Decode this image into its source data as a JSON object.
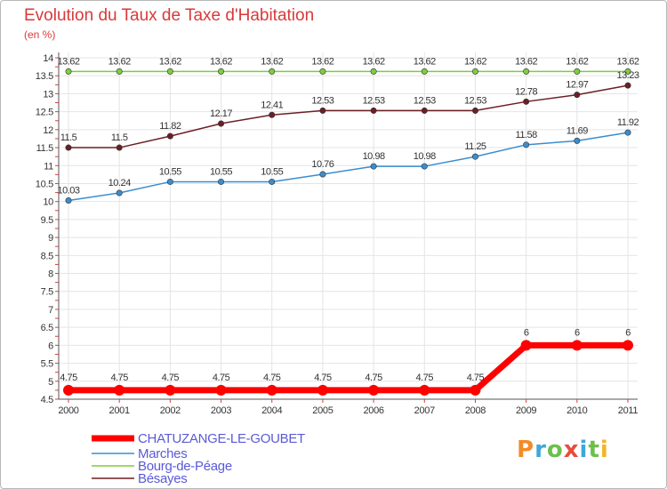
{
  "chart_data": {
    "type": "line",
    "title": "Evolution du Taux de Taxe d'Habitation",
    "subtitle": "(en %)",
    "x": [
      "2000",
      "2001",
      "2002",
      "2003",
      "2004",
      "2005",
      "2006",
      "2007",
      "2008",
      "2009",
      "2010",
      "2011"
    ],
    "ylim": [
      4.5,
      14
    ],
    "ytick_labels": [
      "4.5",
      "5",
      "5.5",
      "6",
      "6.5",
      "7",
      "7.5",
      "8",
      "8.5",
      "9",
      "9.5",
      "10",
      "10.5",
      "11",
      "11.5",
      "12",
      "12.5",
      "13",
      "13.5",
      "14"
    ],
    "series": [
      {
        "name": "CHATUZANGE-LE-GOUBET",
        "color": "#ff0000",
        "emphasis": true,
        "values": [
          4.75,
          4.75,
          4.75,
          4.75,
          4.75,
          4.75,
          4.75,
          4.75,
          4.75,
          6,
          6,
          6
        ],
        "labels": [
          "4.75",
          "4.75",
          "4.75",
          "4.75",
          "4.75",
          "4.75",
          "4.75",
          "4.75",
          "4.75",
          "6",
          "6",
          "6"
        ]
      },
      {
        "name": "Marches",
        "color": "#3a8dcf",
        "emphasis": false,
        "values": [
          10.03,
          10.24,
          10.55,
          10.55,
          10.55,
          10.76,
          10.98,
          10.98,
          11.25,
          11.58,
          11.69,
          11.92
        ],
        "labels": [
          "10.03",
          "10.24",
          "10.55",
          "10.55",
          "10.55",
          "10.76",
          "10.98",
          "10.98",
          "11.25",
          "11.58",
          "11.69",
          "11.92"
        ]
      },
      {
        "name": "Bourg-de-Péage",
        "color": "#7dce3c",
        "emphasis": false,
        "values": [
          13.62,
          13.62,
          13.62,
          13.62,
          13.62,
          13.62,
          13.62,
          13.62,
          13.62,
          13.62,
          13.62,
          13.62
        ],
        "labels": [
          "13.62",
          "13.62",
          "13.62",
          "13.62",
          "13.62",
          "13.62",
          "13.62",
          "13.62",
          "13.62",
          "13.62",
          "13.62",
          "13.62"
        ]
      },
      {
        "name": "Bésayes",
        "color": "#6b1f24",
        "emphasis": false,
        "values": [
          11.5,
          11.5,
          11.82,
          12.17,
          12.41,
          12.53,
          12.53,
          12.53,
          12.53,
          12.78,
          12.97,
          13.23
        ],
        "labels": [
          "11.5",
          "11.5",
          "11.82",
          "12.17",
          "12.41",
          "12.53",
          "12.53",
          "12.53",
          "12.53",
          "12.78",
          "12.97",
          "13.23"
        ]
      }
    ],
    "legend_position": "bottom-left"
  },
  "brand": {
    "letters": [
      "P",
      "r",
      "o",
      "x",
      "i",
      "t",
      "i"
    ]
  }
}
